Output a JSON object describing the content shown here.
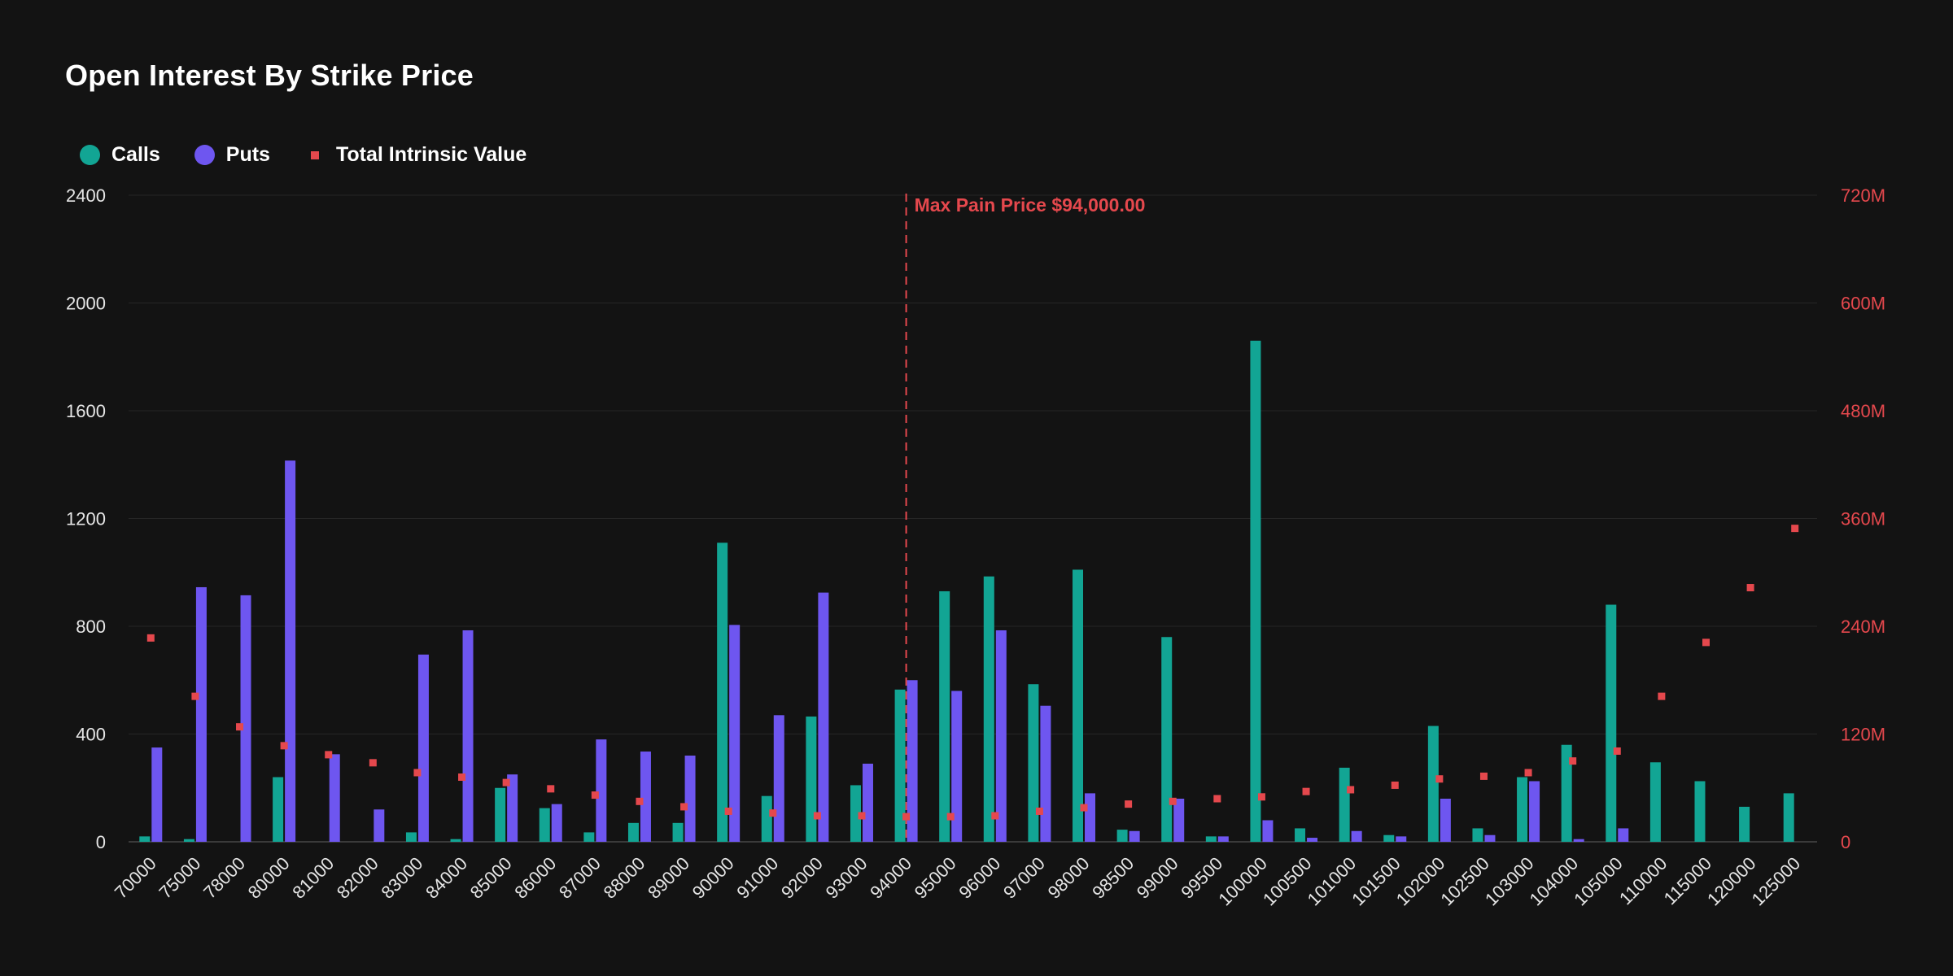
{
  "title": "Open Interest By Strike Price",
  "legend": {
    "calls": "Calls",
    "puts": "Puts",
    "intrinsic": "Total Intrinsic Value"
  },
  "colors": {
    "background": "#131313",
    "calls": "#12a594",
    "puts": "#6e56f0",
    "intrinsic": "#e5484d",
    "grid": "#262626",
    "axis_text": "#e6e6e6"
  },
  "chart_data": {
    "type": "bar",
    "title": "Open Interest By Strike Price",
    "categories": [
      "70000",
      "75000",
      "78000",
      "80000",
      "81000",
      "82000",
      "83000",
      "84000",
      "85000",
      "86000",
      "87000",
      "88000",
      "89000",
      "90000",
      "91000",
      "92000",
      "93000",
      "94000",
      "95000",
      "96000",
      "97000",
      "98000",
      "98500",
      "99000",
      "99500",
      "100000",
      "100500",
      "101000",
      "101500",
      "102000",
      "102500",
      "103000",
      "104000",
      "105000",
      "110000",
      "115000",
      "120000",
      "125000"
    ],
    "series": [
      {
        "name": "Calls",
        "axis": "left",
        "values": [
          20,
          10,
          0,
          240,
          0,
          0,
          35,
          10,
          200,
          125,
          35,
          70,
          70,
          1110,
          170,
          465,
          210,
          565,
          930,
          985,
          585,
          1010,
          45,
          760,
          20,
          1860,
          50,
          275,
          25,
          430,
          50,
          240,
          360,
          880,
          295,
          225,
          130,
          180
        ]
      },
      {
        "name": "Puts",
        "axis": "left",
        "values": [
          350,
          945,
          915,
          1415,
          325,
          120,
          695,
          785,
          250,
          140,
          380,
          335,
          320,
          805,
          470,
          925,
          290,
          600,
          560,
          785,
          505,
          180,
          40,
          160,
          20,
          80,
          15,
          40,
          20,
          160,
          25,
          225,
          10,
          50,
          0,
          0,
          0,
          0
        ]
      },
      {
        "name": "Total Intrinsic Value",
        "axis": "right",
        "values": [
          227,
          162,
          128,
          107,
          97,
          88,
          77,
          72,
          66,
          59,
          52,
          45,
          39,
          34,
          32,
          29,
          29,
          28,
          28,
          29,
          34,
          38,
          42,
          45,
          48,
          50,
          56,
          58,
          63,
          70,
          73,
          77,
          90,
          101,
          162,
          222,
          283,
          349
        ]
      }
    ],
    "y_left": {
      "range": [
        0,
        2400
      ],
      "ticks": [
        "0",
        "400",
        "800",
        "1200",
        "1600",
        "2000",
        "2400"
      ]
    },
    "y_right": {
      "range": [
        0,
        720
      ],
      "unit": "M",
      "ticks": [
        "0",
        "120M",
        "240M",
        "360M",
        "480M",
        "600M",
        "720M"
      ]
    },
    "annotation": {
      "label": "Max Pain Price $94,000.00",
      "category": "94000"
    },
    "grid": true,
    "legend_position": "top-left"
  }
}
